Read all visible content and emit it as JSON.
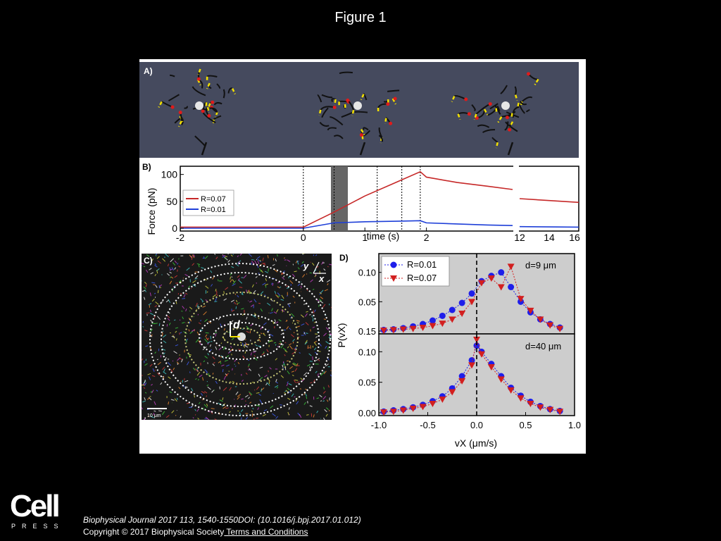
{
  "figure_title": "Figure 1",
  "panel_a": {
    "label": "A)"
  },
  "panel_b": {
    "label": "B)",
    "ylabel": "Force (pN)",
    "xlabel": "time (s)",
    "x_ticks_left": [
      "-2",
      "0",
      "1",
      "2"
    ],
    "x_ticks_right": [
      "12",
      "14",
      "16"
    ],
    "y_ticks": [
      "0",
      "50",
      "100"
    ],
    "legend": [
      "R=0.07",
      "R=0.01"
    ]
  },
  "panel_c": {
    "label": "C)",
    "axis_y": "y",
    "axis_x": "x",
    "vector_label": "d",
    "scalebar": "10 μm"
  },
  "panel_d": {
    "label": "D)",
    "ylabel": "P(vX)",
    "xlabel": "vX (μm/s)",
    "top_title": "d=9 μm",
    "bottom_title": "d=40 μm",
    "top_y_ticks": [
      "0.15",
      "0.05",
      "0.10"
    ],
    "bottom_y_ticks": [
      "0.00",
      "0.05",
      "0.10"
    ],
    "x_ticks": [
      "-1.0",
      "-0.5",
      "0.0",
      "0.5",
      "1.0"
    ],
    "legend": [
      "R=0.01",
      "R=0.07"
    ]
  },
  "chart_data": [
    {
      "type": "line",
      "title": "",
      "xlabel": "time (s)",
      "ylabel": "Force (pN)",
      "ylim": [
        0,
        110
      ],
      "series": [
        {
          "name": "R=0.07",
          "color": "#c62828",
          "x": [
            -2,
            -1,
            0,
            0.5,
            1,
            1.5,
            1.9,
            2,
            2.5,
            3,
            3.4,
            12,
            16
          ],
          "y": [
            2,
            2,
            2,
            30,
            60,
            85,
            105,
            95,
            85,
            78,
            72,
            55,
            48
          ]
        },
        {
          "name": "R=0.01",
          "color": "#1e3fd8",
          "x": [
            -2,
            -1,
            0,
            0.5,
            1,
            1.5,
            1.9,
            2,
            2.5,
            3,
            3.4,
            12,
            16
          ],
          "y": [
            0,
            0,
            0,
            10,
            12,
            13,
            14,
            10,
            8,
            6,
            5,
            3,
            2
          ]
        }
      ]
    },
    {
      "type": "scatter",
      "title": "d=9 μm",
      "xlabel": "vX (μm/s)",
      "ylabel": "P(vX)",
      "ylim": [
        0,
        0.12
      ],
      "series": [
        {
          "name": "R=0.01",
          "color": "#1e1eea",
          "x": [
            -0.95,
            -0.85,
            -0.75,
            -0.65,
            -0.55,
            -0.45,
            -0.35,
            -0.25,
            -0.15,
            -0.05,
            0.05,
            0.15,
            0.25,
            0.35,
            0.45,
            0.55,
            0.65,
            0.75,
            0.85
          ],
          "y": [
            0.002,
            0.003,
            0.005,
            0.008,
            0.012,
            0.018,
            0.026,
            0.036,
            0.048,
            0.064,
            0.085,
            0.094,
            0.1,
            0.075,
            0.05,
            0.032,
            0.02,
            0.012,
            0.006
          ]
        },
        {
          "name": "R=0.07",
          "color": "#d21f1f",
          "x": [
            -0.95,
            -0.85,
            -0.75,
            -0.65,
            -0.55,
            -0.45,
            -0.35,
            -0.25,
            -0.15,
            -0.05,
            0.05,
            0.15,
            0.25,
            0.35,
            0.45,
            0.55,
            0.65,
            0.75,
            0.85
          ],
          "y": [
            0.001,
            0.002,
            0.003,
            0.004,
            0.006,
            0.009,
            0.013,
            0.02,
            0.03,
            0.05,
            0.082,
            0.09,
            0.075,
            0.11,
            0.055,
            0.035,
            0.02,
            0.01,
            0.004
          ]
        }
      ]
    },
    {
      "type": "scatter",
      "title": "d=40 μm",
      "xlabel": "vX (μm/s)",
      "ylabel": "P(vX)",
      "ylim": [
        0,
        0.12
      ],
      "series": [
        {
          "name": "R=0.01",
          "color": "#1e1eea",
          "x": [
            -0.95,
            -0.85,
            -0.75,
            -0.65,
            -0.55,
            -0.45,
            -0.35,
            -0.25,
            -0.15,
            -0.05,
            0.0,
            0.05,
            0.15,
            0.25,
            0.35,
            0.45,
            0.55,
            0.65,
            0.75,
            0.85
          ],
          "y": [
            0.002,
            0.004,
            0.006,
            0.009,
            0.013,
            0.019,
            0.027,
            0.04,
            0.06,
            0.086,
            0.11,
            0.1,
            0.08,
            0.06,
            0.041,
            0.028,
            0.018,
            0.011,
            0.006,
            0.003
          ]
        },
        {
          "name": "R=0.07",
          "color": "#d21f1f",
          "x": [
            -0.95,
            -0.85,
            -0.75,
            -0.65,
            -0.55,
            -0.45,
            -0.35,
            -0.25,
            -0.15,
            -0.05,
            0.0,
            0.05,
            0.15,
            0.25,
            0.35,
            0.45,
            0.55,
            0.65,
            0.75,
            0.85
          ],
          "y": [
            0.001,
            0.002,
            0.004,
            0.007,
            0.01,
            0.015,
            0.022,
            0.034,
            0.052,
            0.078,
            0.12,
            0.096,
            0.075,
            0.055,
            0.037,
            0.024,
            0.015,
            0.009,
            0.005,
            0.002
          ]
        }
      ]
    }
  ],
  "footer": {
    "logo_word": "Cell",
    "logo_sub": "PRESS",
    "citation": "Biophysical Journal 2017 113, 1540-1550DOI: (10.1016/j.bpj.2017.01.012)",
    "copyright": "Copyright © 2017 Biophysical Society",
    "terms_link": " Terms and Conditions"
  }
}
